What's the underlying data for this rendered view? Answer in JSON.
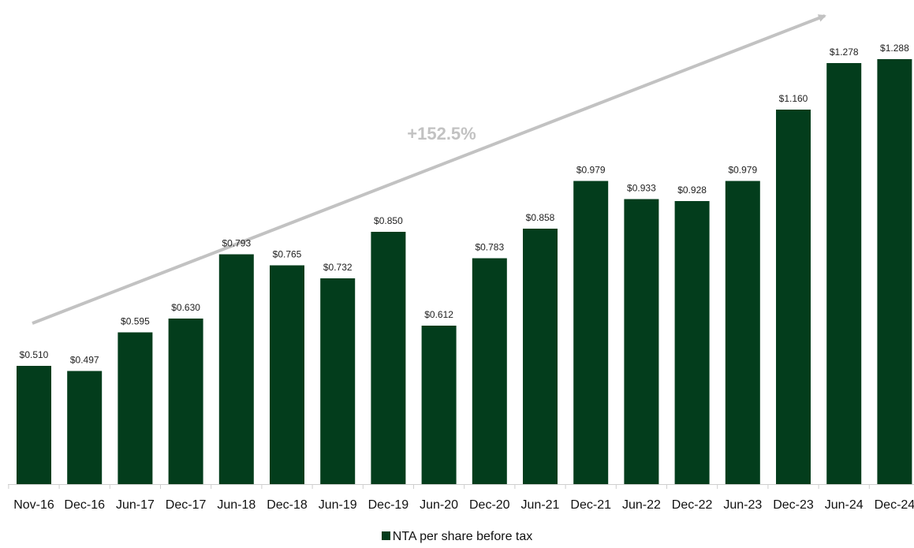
{
  "chart_data": {
    "type": "bar",
    "categories": [
      "Nov-16",
      "Dec-16",
      "Jun-17",
      "Dec-17",
      "Jun-18",
      "Dec-18",
      "Jun-19",
      "Dec-19",
      "Jun-20",
      "Dec-20",
      "Jun-21",
      "Dec-21",
      "Jun-22",
      "Dec-22",
      "Jun-23",
      "Dec-23",
      "Jun-24",
      "Dec-24"
    ],
    "series": [
      {
        "name": "NTA per share before tax",
        "values": [
          0.51,
          0.497,
          0.595,
          0.63,
          0.793,
          0.765,
          0.732,
          0.85,
          0.612,
          0.783,
          0.858,
          0.979,
          0.933,
          0.928,
          0.979,
          1.16,
          1.278,
          1.288
        ],
        "labels": [
          "$0.510",
          "$0.497",
          "$0.595",
          "$0.630",
          "$0.793",
          "$0.765",
          "$0.732",
          "$0.850",
          "$0.612",
          "$0.783",
          "$0.858",
          "$0.979",
          "$0.933",
          "$0.928",
          "$0.979",
          "$1.160",
          "$1.278",
          "$1.288"
        ],
        "color": "#033d1c"
      }
    ],
    "ylim": [
      0.21,
      1.3
    ],
    "grid": false,
    "legend_position": "bottom",
    "annotation": {
      "text": "+152.5%",
      "color": "#c2c2c2"
    }
  }
}
